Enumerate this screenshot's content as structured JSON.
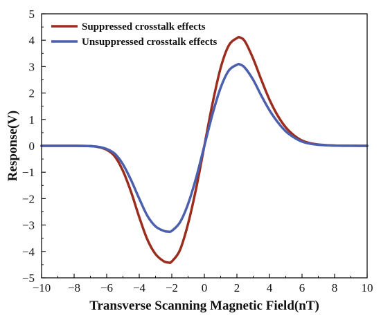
{
  "chart_data": {
    "type": "line",
    "xlabel": "Transverse Scanning Magnetic Field(nT)",
    "ylabel": "Response(V)",
    "xlim": [
      -10,
      10
    ],
    "ylim": [
      -5,
      5
    ],
    "xticks": [
      -10,
      -8,
      -6,
      -4,
      -2,
      0,
      2,
      4,
      6,
      8,
      10
    ],
    "yticks": [
      -5,
      -4,
      -3,
      -2,
      -1,
      0,
      1,
      2,
      3,
      4,
      5
    ],
    "grid": false,
    "legend_position": "top-left",
    "series": [
      {
        "name": "Suppressed crosstalk effects",
        "color": "#9b2d1f",
        "x": [
          -10,
          -8,
          -7,
          -6.5,
          -6,
          -5.5,
          -5,
          -4.5,
          -4,
          -3.5,
          -3,
          -2.5,
          -2.2,
          -2,
          -1.5,
          -1,
          -0.5,
          0,
          0.5,
          1,
          1.5,
          2,
          2.2,
          2.5,
          3,
          3.5,
          4,
          4.5,
          5,
          5.5,
          6,
          6.5,
          7,
          8,
          10
        ],
        "y": [
          0,
          0,
          -0.01,
          -0.05,
          -0.15,
          -0.4,
          -0.95,
          -1.75,
          -2.7,
          -3.55,
          -4.1,
          -4.37,
          -4.42,
          -4.38,
          -3.95,
          -2.95,
          -1.6,
          0,
          1.6,
          2.95,
          3.8,
          4.08,
          4.1,
          3.95,
          3.3,
          2.5,
          1.75,
          1.15,
          0.7,
          0.4,
          0.2,
          0.1,
          0.05,
          0.01,
          0
        ]
      },
      {
        "name": "Unsuppressed crosstalk effects",
        "color": "#4b5fad",
        "x": [
          -10,
          -8,
          -7,
          -6.5,
          -6,
          -5.5,
          -5,
          -4.5,
          -4,
          -3.5,
          -3,
          -2.5,
          -2.2,
          -2,
          -1.5,
          -1,
          -0.5,
          0,
          0.5,
          1,
          1.5,
          2,
          2.2,
          2.5,
          3,
          3.5,
          4,
          4.5,
          5,
          5.5,
          6,
          6.5,
          7,
          8,
          10
        ],
        "y": [
          0,
          0,
          -0.01,
          -0.04,
          -0.12,
          -0.3,
          -0.7,
          -1.3,
          -2.0,
          -2.65,
          -3.05,
          -3.22,
          -3.25,
          -3.22,
          -2.9,
          -2.2,
          -1.2,
          0,
          1.2,
          2.2,
          2.85,
          3.07,
          3.08,
          2.95,
          2.5,
          1.9,
          1.35,
          0.9,
          0.55,
          0.32,
          0.16,
          0.08,
          0.04,
          0.01,
          0
        ]
      }
    ]
  }
}
